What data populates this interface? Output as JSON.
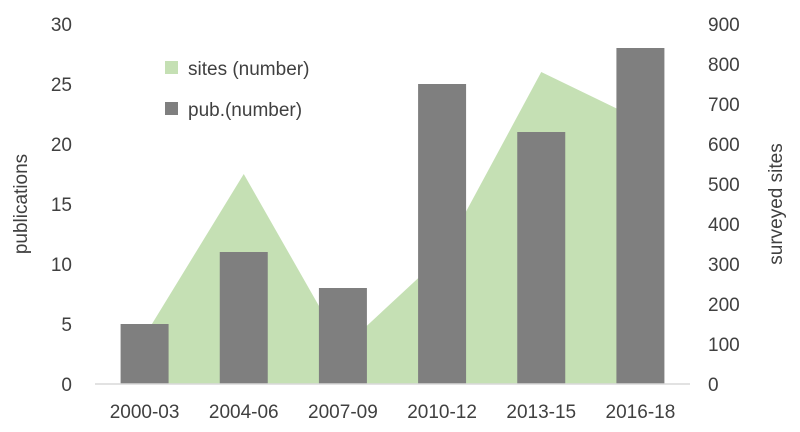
{
  "chart_data": {
    "type": "bar",
    "categories": [
      "2000-03",
      "2004-06",
      "2007-09",
      "2010-12",
      "2013-15",
      "2016-18"
    ],
    "series": [
      {
        "name": "pub.(number)",
        "type": "bar",
        "axis": "left",
        "values": [
          5,
          11,
          8,
          25,
          21,
          28
        ]
      },
      {
        "name": "sites (number)",
        "type": "area",
        "axis": "right",
        "values": [
          120,
          525,
          90,
          320,
          780,
          660
        ]
      }
    ],
    "ylabel": "publications",
    "y2label": "surveyed sites",
    "ylim": [
      0,
      30
    ],
    "y2lim": [
      0,
      900
    ],
    "yticks": [
      "0",
      "5",
      "10",
      "15",
      "20",
      "25",
      "30"
    ],
    "y2ticks": [
      "0",
      "100",
      "200",
      "300",
      "400",
      "500",
      "600",
      "700",
      "800",
      "900"
    ],
    "legend": {
      "placement": "top-left",
      "items": [
        {
          "label": "sites (number)",
          "kind": "area"
        },
        {
          "label": "pub.(number)",
          "kind": "bar"
        }
      ]
    },
    "grid": false
  },
  "colors": {
    "bar": "#7f7f7f",
    "area": "#c5e0b4",
    "text": "#404040",
    "axis": "#d9d9d9"
  }
}
